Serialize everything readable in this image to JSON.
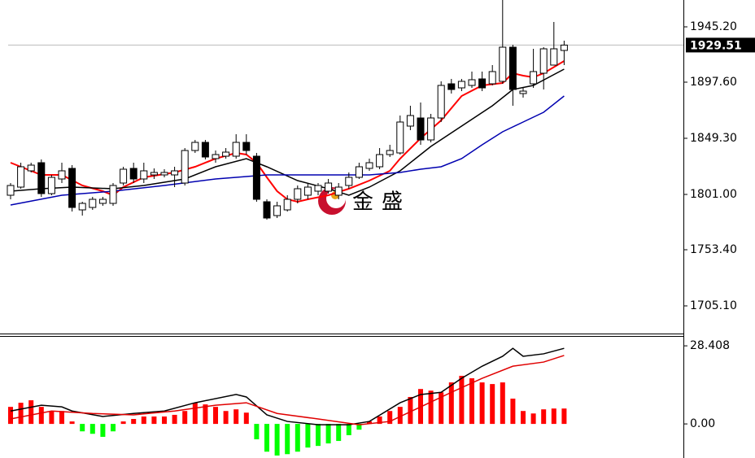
{
  "chart_data": [
    {
      "type": "candlestick",
      "ylim": [
        1681.3,
        1968.3
      ],
      "yticks": [
        {
          "value": 1945.2,
          "label": "1945.20"
        },
        {
          "value": 1897.6,
          "label": "1897.60"
        },
        {
          "value": 1849.3,
          "label": "1849.30"
        },
        {
          "value": 1801.0,
          "label": "1801.00"
        },
        {
          "value": 1753.4,
          "label": "1753.40"
        },
        {
          "value": 1705.1,
          "label": "1705.10"
        }
      ],
      "last_price": 1929.51,
      "watermark": "金盛",
      "up_color": "#ffffff",
      "down_color": "#000000",
      "open": [
        1800.3,
        1807.3,
        1821.3,
        1828.3,
        1801.7,
        1814.3,
        1823.4,
        1787.7,
        1789.8,
        1793.3,
        1793.3,
        1810.8,
        1823.4,
        1814.3,
        1817.8,
        1817.8,
        1817.8,
        1810.8,
        1838.8,
        1845.8,
        1831.8,
        1833.9,
        1833.9,
        1845.8,
        1833.9,
        1794.7,
        1782.8,
        1787.7,
        1796.8,
        1800.3,
        1803.8,
        1803.8,
        1800.3,
        1808.7,
        1815.7,
        1823.4,
        1824.8,
        1835.3,
        1836.7,
        1859.8,
        1866.8,
        1847.9,
        1866.8,
        1896.2,
        1892.7,
        1894.8,
        1900.4,
        1896.2,
        1898.3,
        1927.7,
        1887.8,
        1896.2,
        1905.3,
        1912.3,
        1924.9
      ],
      "high": [
        1810.8,
        1828.3,
        1828.3,
        1831.1,
        1817.8,
        1828.3,
        1826.2,
        1794.7,
        1798.9,
        1798.9,
        1810.8,
        1824.8,
        1828.3,
        1828.3,
        1823.4,
        1822.7,
        1824.8,
        1840.9,
        1847.9,
        1847.9,
        1838.8,
        1840.9,
        1852.8,
        1852.8,
        1836.7,
        1796.8,
        1794.7,
        1800.3,
        1808.7,
        1810.8,
        1810.8,
        1814.3,
        1810.8,
        1819.9,
        1828.3,
        1831.8,
        1840.9,
        1843.7,
        1868.9,
        1877.3,
        1880.1,
        1870.3,
        1898.3,
        1900.4,
        1900.4,
        1906.7,
        1906.7,
        1912.3,
        1968.3,
        1929.8,
        1892.7,
        1926.3,
        1927.7,
        1949.4,
        1933.3
      ],
      "low": [
        1796.8,
        1805.9,
        1819.9,
        1798.9,
        1800.3,
        1810.8,
        1786.3,
        1782.8,
        1787.7,
        1791.2,
        1791.2,
        1808.7,
        1810.8,
        1810.8,
        1814.3,
        1815.7,
        1807.3,
        1808.7,
        1836.7,
        1831.1,
        1828.3,
        1831.8,
        1831.8,
        1835.3,
        1794.7,
        1779.3,
        1780.7,
        1786.3,
        1793.3,
        1796.8,
        1800.3,
        1801.7,
        1796.8,
        1805.9,
        1814.3,
        1821.3,
        1822.7,
        1833.2,
        1835.3,
        1856.3,
        1843.7,
        1845.8,
        1863.3,
        1887.8,
        1889.9,
        1892.7,
        1889.9,
        1894.8,
        1896.2,
        1877.3,
        1884.3,
        1892.7,
        1891.3,
        1912.3,
        1912.3
      ],
      "close": [
        1808.7,
        1824.8,
        1826.2,
        1801.7,
        1815.7,
        1821.3,
        1789.8,
        1793.3,
        1796.8,
        1796.8,
        1808.7,
        1822.7,
        1814.3,
        1821.3,
        1819.9,
        1819.9,
        1821.3,
        1838.8,
        1845.8,
        1833.2,
        1835.3,
        1837.4,
        1845.8,
        1838.8,
        1796.8,
        1780.7,
        1791.2,
        1796.8,
        1805.9,
        1807.3,
        1808.7,
        1810.8,
        1807.3,
        1815.7,
        1824.8,
        1828.3,
        1835.3,
        1838.8,
        1863.3,
        1868.9,
        1847.9,
        1866.8,
        1894.8,
        1891.3,
        1898.3,
        1899.7,
        1892.7,
        1906.7,
        1927.7,
        1891.3,
        1889.9,
        1906.7,
        1926.3,
        1926.3,
        1929.51
      ],
      "series": [
        {
          "color": "#ff0000",
          "x": [
            0,
            3,
            5,
            7,
            9,
            10,
            11,
            13,
            16,
            18,
            20,
            22,
            23,
            24,
            25,
            26,
            27,
            28,
            29,
            31,
            33,
            35,
            37,
            38,
            40,
            42,
            44,
            46,
            48,
            49,
            50,
            51,
            52,
            54
          ],
          "values": [
            1828.3,
            1817.8,
            1817.8,
            1808.7,
            1803.8,
            1800.3,
            1807.3,
            1815.7,
            1819.9,
            1824.8,
            1831.8,
            1836.7,
            1835.3,
            1828.3,
            1815.7,
            1803.8,
            1796.8,
            1794.7,
            1796.8,
            1800.3,
            1805.9,
            1812.9,
            1821.3,
            1831.8,
            1849.3,
            1864.7,
            1885.7,
            1894.8,
            1896.9,
            1905.3,
            1903.2,
            1901.8,
            1905.3,
            1915.8
          ]
        },
        {
          "color": "#000000",
          "x": [
            0,
            3,
            6,
            10,
            13,
            17,
            20,
            23,
            25,
            28,
            31,
            33,
            35,
            38,
            41,
            44,
            47,
            49,
            51,
            54
          ],
          "values": [
            1803.8,
            1805.9,
            1807.3,
            1805.9,
            1808.7,
            1814.3,
            1824.8,
            1831.8,
            1824.8,
            1812.9,
            1805.9,
            1800.3,
            1807.3,
            1821.3,
            1842.3,
            1859.8,
            1877.3,
            1891.3,
            1894.8,
            1908.8
          ]
        },
        {
          "color": "#0000b0",
          "x": [
            0,
            5,
            10,
            15,
            20,
            25,
            30,
            35,
            38,
            40,
            42,
            44,
            46,
            48,
            50,
            52,
            54
          ],
          "values": [
            1791.9,
            1800.3,
            1803.8,
            1808.7,
            1814.3,
            1817.8,
            1817.8,
            1817.8,
            1819.9,
            1822.7,
            1824.8,
            1831.8,
            1843.7,
            1854.9,
            1863.3,
            1871.7,
            1885.7
          ]
        }
      ]
    },
    {
      "type": "bar",
      "ylim": [
        -12.4,
        31.4
      ],
      "yticks": [
        28.408,
        {
          "value": 0,
          "label": "0.00"
        }
      ],
      "positive_color": "#ff0000",
      "negative_color": "#00ff00",
      "values": [
        6.2,
        7.7,
        8.6,
        6.2,
        4.7,
        4.7,
        0.9,
        -2.7,
        -3.6,
        -4.7,
        -2.7,
        0.9,
        1.8,
        2.7,
        2.7,
        2.7,
        3.3,
        4.7,
        7.7,
        7.1,
        6.2,
        4.7,
        5.3,
        4.1,
        -5.6,
        -10.1,
        -11.5,
        -11.0,
        -10.1,
        -8.6,
        -8.0,
        -7.1,
        -6.2,
        -4.1,
        -2.1,
        0.9,
        2.7,
        4.7,
        6.2,
        9.8,
        12.7,
        12.1,
        11.5,
        15.1,
        17.5,
        16.6,
        15.1,
        14.5,
        15.1,
        9.2,
        4.7,
        3.8,
        5.3,
        5.6,
        5.6
      ],
      "series": [
        {
          "color": "#000000",
          "x": [
            0,
            3,
            5,
            6,
            9,
            12,
            15,
            18,
            22,
            23,
            25,
            27,
            30,
            33,
            35,
            38,
            40,
            42,
            44,
            46,
            48,
            49,
            50,
            52,
            54
          ],
          "values": [
            4.7,
            6.8,
            6.2,
            4.7,
            2.7,
            3.8,
            4.7,
            7.7,
            10.7,
            9.8,
            3.3,
            0.9,
            -0.3,
            -0.3,
            0.9,
            7.7,
            10.7,
            11.5,
            16.6,
            21.0,
            24.6,
            27.5,
            24.6,
            25.5,
            27.5
          ]
        },
        {
          "color": "#e00000",
          "x": [
            0,
            4,
            8,
            12,
            16,
            20,
            23,
            26,
            30,
            34,
            37,
            40,
            43,
            46,
            49,
            52,
            54
          ],
          "values": [
            1.8,
            4.7,
            3.8,
            3.3,
            4.7,
            6.8,
            7.7,
            3.8,
            1.8,
            -0.3,
            0.9,
            6.2,
            11.5,
            16.6,
            21.0,
            22.5,
            24.9
          ]
        }
      ]
    }
  ]
}
